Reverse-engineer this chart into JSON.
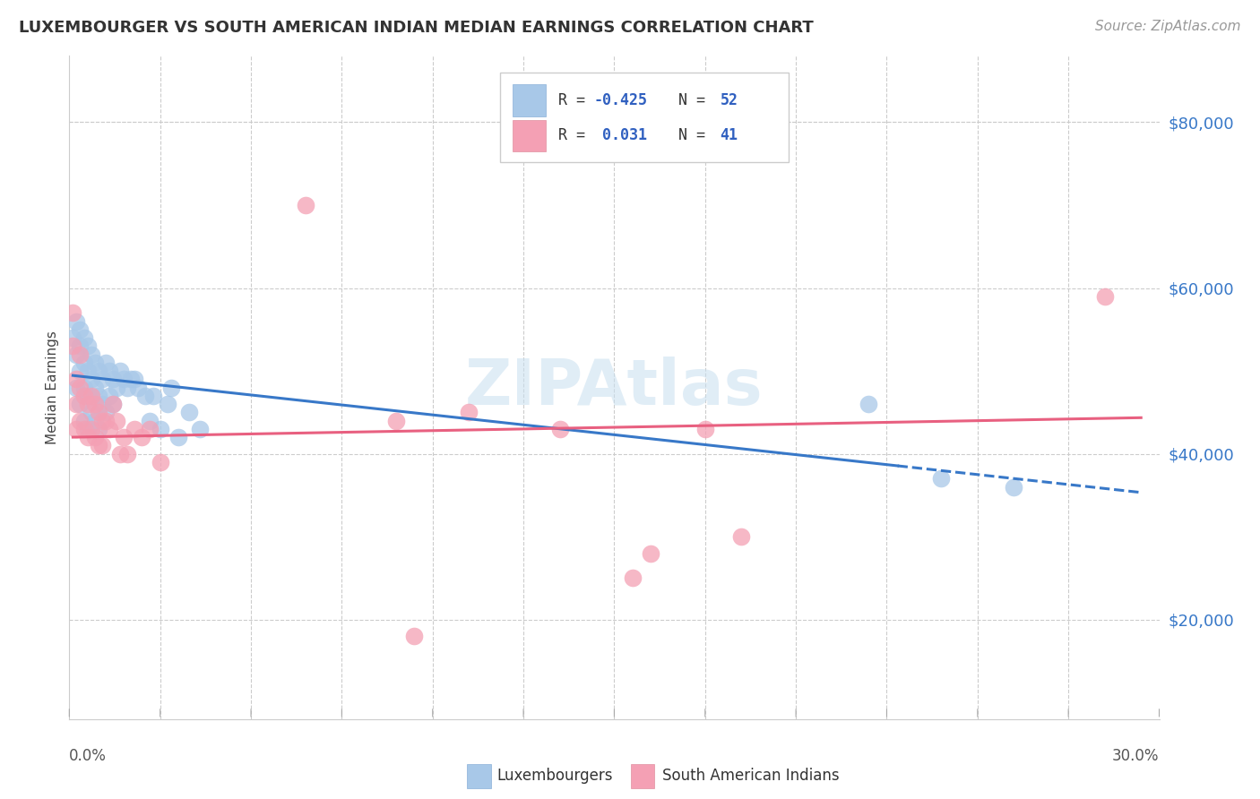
{
  "title": "LUXEMBOURGER VS SOUTH AMERICAN INDIAN MEDIAN EARNINGS CORRELATION CHART",
  "source": "Source: ZipAtlas.com",
  "ylabel": "Median Earnings",
  "xlim": [
    0.0,
    0.3
  ],
  "ylim": [
    8000,
    88000
  ],
  "color_blue": "#a8c8e8",
  "color_pink": "#f4a0b4",
  "color_blue_line": "#3878c8",
  "color_pink_line": "#e86080",
  "watermark": "ZIPAtlas",
  "lux_x": [
    0.001,
    0.002,
    0.002,
    0.002,
    0.003,
    0.003,
    0.003,
    0.003,
    0.004,
    0.004,
    0.004,
    0.004,
    0.005,
    0.005,
    0.005,
    0.005,
    0.006,
    0.006,
    0.006,
    0.007,
    0.007,
    0.007,
    0.008,
    0.008,
    0.008,
    0.009,
    0.009,
    0.01,
    0.01,
    0.011,
    0.011,
    0.012,
    0.012,
    0.013,
    0.014,
    0.015,
    0.016,
    0.017,
    0.018,
    0.019,
    0.021,
    0.022,
    0.023,
    0.025,
    0.027,
    0.028,
    0.03,
    0.033,
    0.036,
    0.22,
    0.24,
    0.26
  ],
  "lux_y": [
    54000,
    56000,
    52000,
    48000,
    55000,
    53000,
    50000,
    46000,
    54000,
    51000,
    48000,
    44000,
    53000,
    50000,
    47000,
    43000,
    52000,
    49000,
    45000,
    51000,
    48000,
    44000,
    50000,
    47000,
    43000,
    49000,
    46000,
    51000,
    45000,
    50000,
    47000,
    49000,
    46000,
    48000,
    50000,
    49000,
    48000,
    49000,
    49000,
    48000,
    47000,
    44000,
    47000,
    43000,
    46000,
    48000,
    42000,
    45000,
    43000,
    46000,
    37000,
    36000
  ],
  "sai_x": [
    0.001,
    0.001,
    0.002,
    0.002,
    0.002,
    0.003,
    0.003,
    0.003,
    0.004,
    0.004,
    0.005,
    0.005,
    0.006,
    0.006,
    0.007,
    0.007,
    0.008,
    0.008,
    0.009,
    0.009,
    0.01,
    0.011,
    0.012,
    0.013,
    0.014,
    0.015,
    0.016,
    0.018,
    0.02,
    0.022,
    0.025,
    0.065,
    0.09,
    0.11,
    0.135,
    0.155,
    0.16,
    0.175,
    0.185,
    0.285,
    0.095
  ],
  "sai_y": [
    57000,
    53000,
    49000,
    46000,
    43000,
    52000,
    48000,
    44000,
    47000,
    43000,
    46000,
    42000,
    47000,
    43000,
    46000,
    42000,
    45000,
    41000,
    44000,
    41000,
    44000,
    43000,
    46000,
    44000,
    40000,
    42000,
    40000,
    43000,
    42000,
    43000,
    39000,
    70000,
    44000,
    45000,
    43000,
    25000,
    28000,
    43000,
    30000,
    59000,
    18000
  ]
}
